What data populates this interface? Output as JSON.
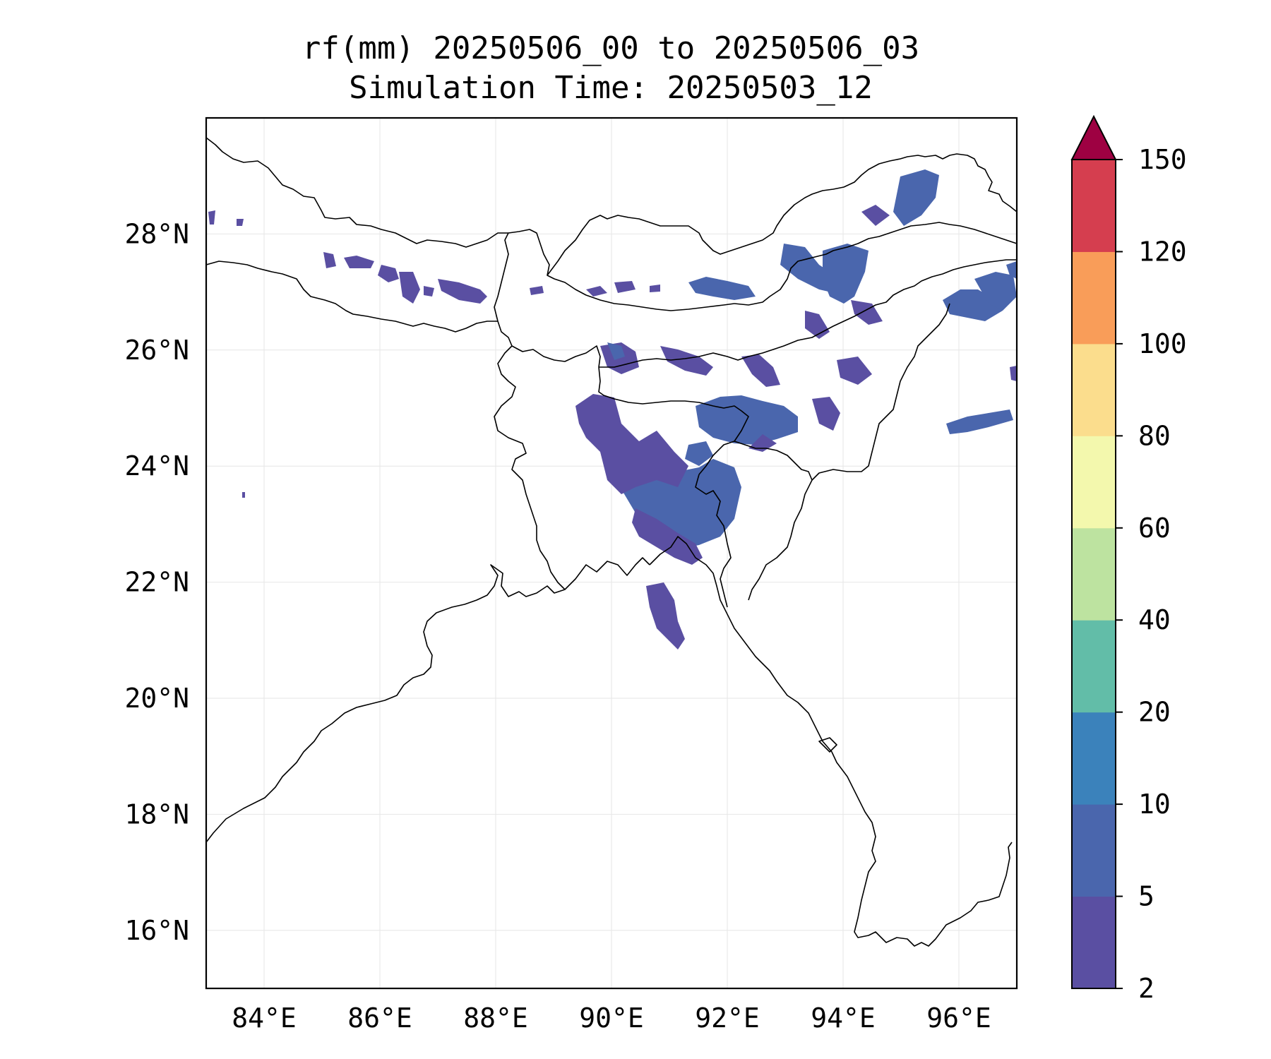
{
  "title_line1": "rf(mm) 20250506_00 to 20250506_03",
  "title_line2": "Simulation Time: 20250503_12",
  "map": {
    "lon_range": [
      83,
      97
    ],
    "lat_range": [
      15,
      30
    ],
    "grid": true,
    "lon_ticks": [
      {
        "value": 84,
        "label": "84°E"
      },
      {
        "value": 86,
        "label": "86°E"
      },
      {
        "value": 88,
        "label": "88°E"
      },
      {
        "value": 90,
        "label": "90°E"
      },
      {
        "value": 92,
        "label": "92°E"
      },
      {
        "value": 94,
        "label": "94°E"
      },
      {
        "value": 96,
        "label": "96°E"
      }
    ],
    "lat_ticks": [
      {
        "value": 16,
        "label": "16°N"
      },
      {
        "value": 18,
        "label": "18°N"
      },
      {
        "value": 20,
        "label": "20°N"
      },
      {
        "value": 22,
        "label": "22°N"
      },
      {
        "value": 24,
        "label": "24°N"
      },
      {
        "value": 26,
        "label": "26°N"
      },
      {
        "value": 28,
        "label": "28°N"
      }
    ]
  },
  "colorbar": {
    "levels": [
      "2",
      "5",
      "10",
      "20",
      "40",
      "60",
      "80",
      "100",
      "120",
      "150"
    ],
    "colors": [
      "#5a4fa2",
      "#4a66ad",
      "#3b82bb",
      "#62bda8",
      "#bde3a0",
      "#f3f8ad",
      "#fbdd8d",
      "#f99d59",
      "#d53e4f"
    ],
    "extend_color": "#9e0142"
  },
  "icons": {
    "extend_arrow": "triangle-up-icon"
  }
}
